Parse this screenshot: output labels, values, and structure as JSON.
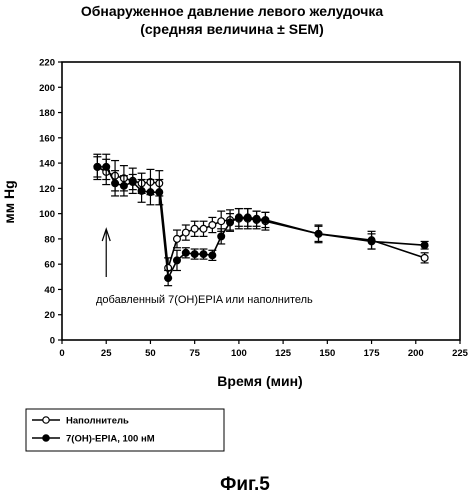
{
  "chart_data": {
    "type": "line",
    "title": "Обнаруженное давление левого желудочка",
    "subtitle": "(средняя величина ± SEM)",
    "xlabel": "Время (мин)",
    "ylabel": "мм Hg",
    "xlim": [
      0,
      225
    ],
    "ylim": [
      0,
      220
    ],
    "xticks": [
      0,
      25,
      50,
      75,
      100,
      125,
      150,
      175,
      200,
      225
    ],
    "yticks": [
      0,
      20,
      40,
      60,
      80,
      100,
      120,
      140,
      160,
      180,
      200,
      220
    ],
    "grid": false,
    "annotation": "добавленный 7(ОН)ЕPIA или наполнитель",
    "annotation_arrow_x": 25,
    "legend_position": "bottom-left",
    "series": [
      {
        "name": "Наполнитель",
        "marker": "open-circle",
        "color": "#000000",
        "x": [
          20,
          25,
          30,
          35,
          40,
          45,
          50,
          55,
          60,
          65,
          70,
          75,
          80,
          85,
          90,
          95,
          100,
          105,
          110,
          115,
          145,
          175,
          205
        ],
        "y": [
          137,
          133,
          130,
          128,
          126,
          124,
          125,
          124,
          57,
          80,
          85,
          88,
          88,
          91,
          94,
          95,
          96,
          96,
          95,
          94,
          84,
          79,
          65
        ],
        "err": [
          10,
          10,
          12,
          10,
          10,
          8,
          10,
          10,
          8,
          7,
          6,
          6,
          6,
          6,
          8,
          8,
          8,
          8,
          7,
          7,
          7,
          7,
          4
        ]
      },
      {
        "name": "7(OH)-EPIA, 100 нМ",
        "marker": "filled-circle",
        "color": "#000000",
        "x": [
          20,
          25,
          30,
          35,
          40,
          45,
          50,
          55,
          60,
          65,
          70,
          75,
          80,
          85,
          90,
          95,
          100,
          105,
          110,
          115,
          145,
          175,
          205
        ],
        "y": [
          137,
          137,
          124,
          122,
          125,
          118,
          117,
          117,
          49,
          63,
          69,
          68,
          68,
          67,
          82,
          93,
          97,
          97,
          96,
          95,
          84,
          78,
          75
        ],
        "err": [
          8,
          10,
          10,
          8,
          6,
          9,
          10,
          10,
          6,
          8,
          4,
          4,
          4,
          4,
          6,
          7,
          7,
          7,
          6,
          6,
          6,
          6,
          3
        ]
      }
    ]
  },
  "figure_caption": "Фиг.5"
}
